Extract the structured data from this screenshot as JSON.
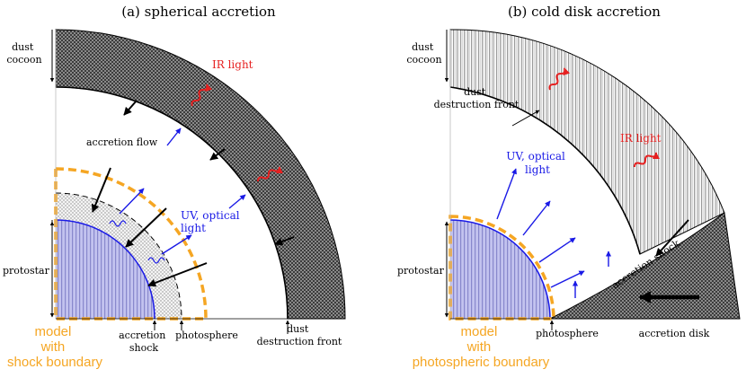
{
  "panel_a": {
    "title": "(a) spherical accretion",
    "labels": {
      "dust_cocoon": [
        "dust",
        "cocoon"
      ],
      "ir_light": "IR light",
      "accretion_flow": "accretion flow",
      "uv_optical": [
        "UV, optical",
        "light"
      ],
      "protostar": "protostar",
      "accretion_shock": [
        "accretion",
        "shock"
      ],
      "photosphere": "photosphere",
      "dust_destruction_front": [
        "dust",
        "destruction front"
      ],
      "model": [
        "model",
        "with",
        "shock boundary"
      ]
    }
  },
  "panel_b": {
    "title": "(b) cold disk accretion",
    "labels": {
      "dust_cocoon": [
        "dust",
        "cocoon"
      ],
      "dust_destruction_front": [
        "dust",
        "destruction front"
      ],
      "uv_optical": [
        "UV, optical",
        "light"
      ],
      "ir_light": "IR light",
      "protostar": "protostar",
      "accretion_shock": "accretion shock",
      "photosphere": "photosphere",
      "accretion_disk": "accretion disk",
      "model": [
        "model",
        "with",
        "photospheric boundary"
      ]
    }
  },
  "colors": {
    "model_boundary": "#f5a623",
    "model_text": "#f5a623",
    "protostar_fill": "#b9b9ec",
    "uv_arrow": "#1a1ae6",
    "ir_arrow": "#e62020",
    "dust": "#6e6e6e"
  }
}
